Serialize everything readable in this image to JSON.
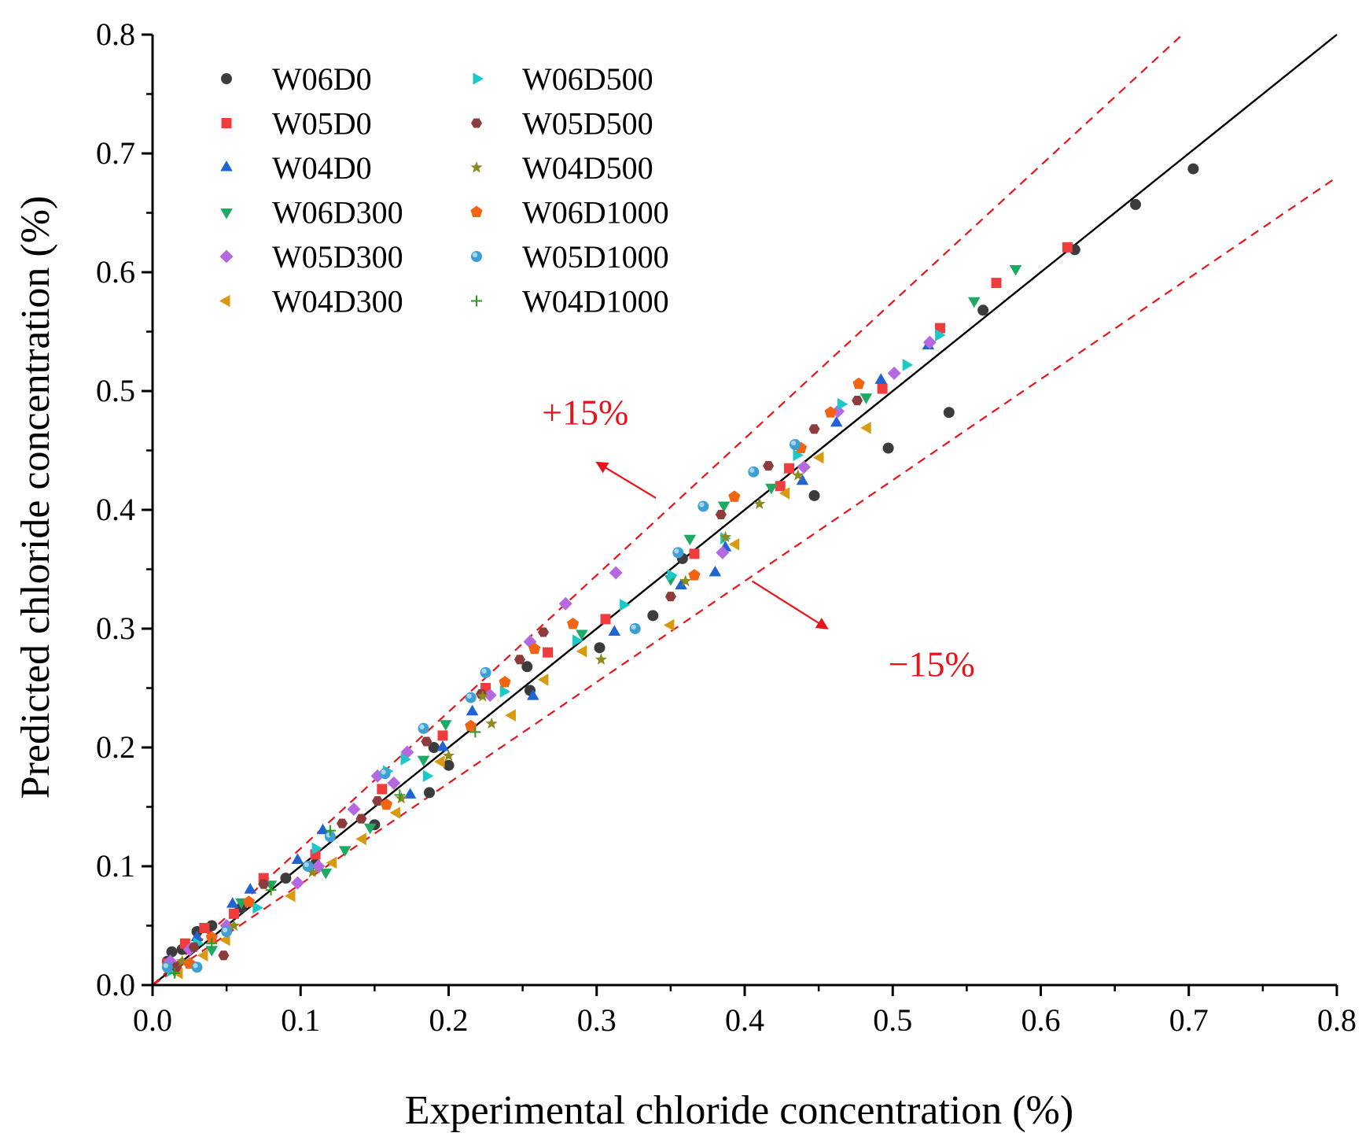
{
  "chart_data": {
    "type": "scatter",
    "title": "",
    "xlabel": "Experimental chloride concentration (%)",
    "ylabel": "Predicted chloride concentration (%)",
    "xlim": [
      0.0,
      0.8
    ],
    "ylim": [
      0.0,
      0.8
    ],
    "xticks": [
      "0.0",
      "0.1",
      "0.2",
      "0.3",
      "0.4",
      "0.5",
      "0.6",
      "0.7",
      "0.8"
    ],
    "yticks": [
      "0.0",
      "0.1",
      "0.2",
      "0.3",
      "0.4",
      "0.5",
      "0.6",
      "0.7",
      "0.8"
    ],
    "grid": false,
    "legend_position": "top-left",
    "reference_lines": [
      {
        "name": "1:1 line",
        "slope": 1.0,
        "style": "solid",
        "color": "#000000"
      },
      {
        "name": "+15%",
        "slope": 1.15,
        "style": "dashed",
        "color": "#e8141b"
      },
      {
        "name": "-15%",
        "slope": 0.85,
        "style": "dashed",
        "color": "#e8141b"
      }
    ],
    "annotations": [
      {
        "text": "+15%",
        "x": 0.263,
        "y": 0.472,
        "arrow_from": [
          0.34,
          0.41
        ],
        "arrow_to": [
          0.3,
          0.44
        ]
      },
      {
        "text": "−15%",
        "x": 0.497,
        "y": 0.26,
        "arrow_from": [
          0.405,
          0.34
        ],
        "arrow_to": [
          0.456,
          0.3
        ]
      }
    ],
    "series": [
      {
        "name": "W06D0",
        "marker": "circle",
        "color": "#3c3c3c",
        "points": [
          [
            0.01,
            0.02
          ],
          [
            0.013,
            0.028
          ],
          [
            0.02,
            0.03
          ],
          [
            0.03,
            0.045
          ],
          [
            0.04,
            0.05
          ],
          [
            0.06,
            0.065
          ],
          [
            0.09,
            0.09
          ],
          [
            0.11,
            0.102
          ],
          [
            0.15,
            0.135
          ],
          [
            0.187,
            0.162
          ],
          [
            0.19,
            0.2
          ],
          [
            0.2,
            0.185
          ],
          [
            0.253,
            0.268
          ],
          [
            0.255,
            0.248
          ],
          [
            0.302,
            0.284
          ],
          [
            0.338,
            0.311
          ],
          [
            0.358,
            0.359
          ],
          [
            0.447,
            0.412
          ],
          [
            0.497,
            0.452
          ],
          [
            0.538,
            0.482
          ],
          [
            0.561,
            0.568
          ],
          [
            0.623,
            0.619
          ],
          [
            0.664,
            0.657
          ],
          [
            0.703,
            0.687
          ]
        ]
      },
      {
        "name": "W05D0",
        "marker": "square",
        "color": "#f03c3c",
        "points": [
          [
            0.01,
            0.018
          ],
          [
            0.022,
            0.035
          ],
          [
            0.035,
            0.048
          ],
          [
            0.055,
            0.06
          ],
          [
            0.075,
            0.09
          ],
          [
            0.11,
            0.11
          ],
          [
            0.155,
            0.165
          ],
          [
            0.196,
            0.21
          ],
          [
            0.225,
            0.25
          ],
          [
            0.267,
            0.28
          ],
          [
            0.306,
            0.308
          ],
          [
            0.366,
            0.363
          ],
          [
            0.424,
            0.42
          ],
          [
            0.43,
            0.435
          ],
          [
            0.493,
            0.502
          ],
          [
            0.532,
            0.553
          ],
          [
            0.57,
            0.591
          ],
          [
            0.618,
            0.621
          ]
        ]
      },
      {
        "name": "W04D0",
        "marker": "triangle-up",
        "color": "#1f64d2",
        "points": [
          [
            0.012,
            0.015
          ],
          [
            0.03,
            0.04
          ],
          [
            0.054,
            0.068
          ],
          [
            0.066,
            0.08
          ],
          [
            0.098,
            0.105
          ],
          [
            0.115,
            0.13
          ],
          [
            0.174,
            0.16
          ],
          [
            0.196,
            0.2
          ],
          [
            0.216,
            0.23
          ],
          [
            0.257,
            0.243
          ],
          [
            0.312,
            0.297
          ],
          [
            0.357,
            0.336
          ],
          [
            0.38,
            0.347
          ],
          [
            0.387,
            0.368
          ],
          [
            0.439,
            0.424
          ],
          [
            0.462,
            0.473
          ],
          [
            0.492,
            0.509
          ],
          [
            0.524,
            0.538
          ]
        ]
      },
      {
        "name": "W06D300",
        "marker": "triangle-down",
        "color": "#1eaa64",
        "points": [
          [
            0.015,
            0.012
          ],
          [
            0.04,
            0.03
          ],
          [
            0.06,
            0.07
          ],
          [
            0.08,
            0.085
          ],
          [
            0.117,
            0.095
          ],
          [
            0.13,
            0.114
          ],
          [
            0.147,
            0.133
          ],
          [
            0.183,
            0.19
          ],
          [
            0.198,
            0.22
          ],
          [
            0.29,
            0.296
          ],
          [
            0.35,
            0.342
          ],
          [
            0.363,
            0.376
          ],
          [
            0.386,
            0.404
          ],
          [
            0.418,
            0.419
          ],
          [
            0.482,
            0.495
          ],
          [
            0.555,
            0.576
          ],
          [
            0.583,
            0.603
          ]
        ]
      },
      {
        "name": "W05D300",
        "marker": "diamond",
        "color": "#b469e1",
        "points": [
          [
            0.012,
            0.02
          ],
          [
            0.025,
            0.03
          ],
          [
            0.05,
            0.05
          ],
          [
            0.098,
            0.086
          ],
          [
            0.112,
            0.1
          ],
          [
            0.136,
            0.148
          ],
          [
            0.152,
            0.176
          ],
          [
            0.163,
            0.17
          ],
          [
            0.172,
            0.196
          ],
          [
            0.228,
            0.244
          ],
          [
            0.255,
            0.289
          ],
          [
            0.279,
            0.321
          ],
          [
            0.313,
            0.347
          ],
          [
            0.385,
            0.364
          ],
          [
            0.44,
            0.436
          ],
          [
            0.463,
            0.483
          ],
          [
            0.501,
            0.515
          ],
          [
            0.525,
            0.541
          ]
        ]
      },
      {
        "name": "W04D300",
        "marker": "triangle-left",
        "color": "#d99a11",
        "points": [
          [
            0.018,
            0.01
          ],
          [
            0.035,
            0.025
          ],
          [
            0.05,
            0.038
          ],
          [
            0.094,
            0.075
          ],
          [
            0.122,
            0.103
          ],
          [
            0.142,
            0.123
          ],
          [
            0.165,
            0.145
          ],
          [
            0.195,
            0.188
          ],
          [
            0.243,
            0.227
          ],
          [
            0.265,
            0.257
          ],
          [
            0.291,
            0.281
          ],
          [
            0.35,
            0.303
          ],
          [
            0.394,
            0.371
          ],
          [
            0.428,
            0.414
          ],
          [
            0.451,
            0.444
          ],
          [
            0.483,
            0.469
          ]
        ]
      },
      {
        "name": "W06D500",
        "marker": "triangle-right",
        "color": "#1fc8c8",
        "points": [
          [
            0.012,
            0.012
          ],
          [
            0.03,
            0.035
          ],
          [
            0.07,
            0.065
          ],
          [
            0.11,
            0.115
          ],
          [
            0.158,
            0.18
          ],
          [
            0.17,
            0.19
          ],
          [
            0.185,
            0.176
          ],
          [
            0.237,
            0.247
          ],
          [
            0.286,
            0.29
          ],
          [
            0.318,
            0.32
          ],
          [
            0.35,
            0.345
          ],
          [
            0.386,
            0.376
          ],
          [
            0.435,
            0.446
          ],
          [
            0.465,
            0.489
          ],
          [
            0.509,
            0.522
          ],
          [
            0.531,
            0.547
          ]
        ]
      },
      {
        "name": "W05D500",
        "marker": "hexagon",
        "color": "#8c3c3c",
        "points": [
          [
            0.016,
            0.015
          ],
          [
            0.028,
            0.032
          ],
          [
            0.048,
            0.025
          ],
          [
            0.075,
            0.085
          ],
          [
            0.128,
            0.136
          ],
          [
            0.141,
            0.14
          ],
          [
            0.152,
            0.155
          ],
          [
            0.185,
            0.205
          ],
          [
            0.222,
            0.245
          ],
          [
            0.248,
            0.274
          ],
          [
            0.264,
            0.297
          ],
          [
            0.35,
            0.327
          ],
          [
            0.384,
            0.396
          ],
          [
            0.416,
            0.437
          ],
          [
            0.447,
            0.468
          ],
          [
            0.476,
            0.492
          ]
        ]
      },
      {
        "name": "W04D500",
        "marker": "star",
        "color": "#8c8c1e",
        "points": [
          [
            0.02,
            0.02
          ],
          [
            0.055,
            0.05
          ],
          [
            0.108,
            0.095
          ],
          [
            0.168,
            0.157
          ],
          [
            0.2,
            0.193
          ],
          [
            0.223,
            0.243
          ],
          [
            0.229,
            0.22
          ],
          [
            0.303,
            0.274
          ],
          [
            0.36,
            0.34
          ],
          [
            0.387,
            0.377
          ],
          [
            0.41,
            0.405
          ],
          [
            0.436,
            0.429
          ]
        ]
      },
      {
        "name": "W06D1000",
        "marker": "pentagon",
        "color": "#f06414",
        "points": [
          [
            0.025,
            0.018
          ],
          [
            0.04,
            0.04
          ],
          [
            0.065,
            0.07
          ],
          [
            0.158,
            0.152
          ],
          [
            0.215,
            0.218
          ],
          [
            0.238,
            0.255
          ],
          [
            0.258,
            0.283
          ],
          [
            0.284,
            0.304
          ],
          [
            0.366,
            0.345
          ],
          [
            0.393,
            0.411
          ],
          [
            0.438,
            0.452
          ],
          [
            0.458,
            0.482
          ],
          [
            0.477,
            0.506
          ]
        ]
      },
      {
        "name": "W05D1000",
        "marker": "globe",
        "color": "#3ca0d2",
        "points": [
          [
            0.01,
            0.015
          ],
          [
            0.03,
            0.015
          ],
          [
            0.05,
            0.045
          ],
          [
            0.105,
            0.1
          ],
          [
            0.12,
            0.125
          ],
          [
            0.157,
            0.178
          ],
          [
            0.183,
            0.216
          ],
          [
            0.215,
            0.242
          ],
          [
            0.225,
            0.263
          ],
          [
            0.326,
            0.3
          ],
          [
            0.355,
            0.364
          ],
          [
            0.372,
            0.403
          ],
          [
            0.406,
            0.432
          ],
          [
            0.434,
            0.455
          ]
        ]
      },
      {
        "name": "W04D1000",
        "marker": "plus",
        "color": "#2a9a1e",
        "points": [
          [
            0.015,
            0.01
          ],
          [
            0.04,
            0.035
          ],
          [
            0.08,
            0.08
          ],
          [
            0.12,
            0.13
          ],
          [
            0.167,
            0.16
          ],
          [
            0.218,
            0.213
          ]
        ]
      }
    ]
  }
}
